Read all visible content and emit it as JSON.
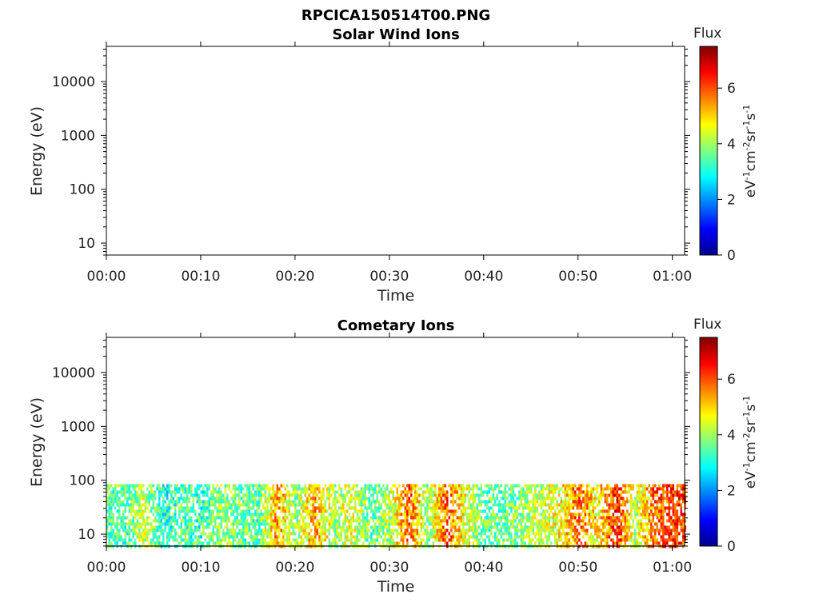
{
  "figure": {
    "title": "RPCICA150514T00.PNG"
  },
  "colors": {
    "axis": "#000000",
    "text": "#222222"
  },
  "chart_data": [
    {
      "type": "heatmap",
      "title": "Solar Wind Ions",
      "xlabel": "Time",
      "ylabel": "Energy (eV)",
      "x_ticks": [
        "00:00",
        "00:10",
        "00:20",
        "00:30",
        "00:40",
        "00:50",
        "01:00"
      ],
      "x_range_minutes": [
        0,
        61.3
      ],
      "y_ticks": [
        "10",
        "100",
        "1000",
        "10000"
      ],
      "y_scale": "log",
      "y_range": [
        6,
        45000
      ],
      "colorbar": {
        "label": "Flux",
        "units": "eV-1cm-2sr-1s-1",
        "ticks": [
          "0",
          "2",
          "4",
          "6"
        ],
        "range": [
          0,
          7.5
        ],
        "colormap": "jet"
      },
      "data": "empty"
    },
    {
      "type": "heatmap",
      "title": "Cometary Ions",
      "xlabel": "Time",
      "ylabel": "Energy (eV)",
      "x_ticks": [
        "00:00",
        "00:10",
        "00:20",
        "00:30",
        "00:40",
        "00:50",
        "01:00"
      ],
      "x_range_minutes": [
        0,
        61.3
      ],
      "y_ticks": [
        "10",
        "100",
        "1000",
        "10000"
      ],
      "y_scale": "log",
      "y_range": [
        6,
        45000
      ],
      "colorbar": {
        "label": "Flux",
        "units": "eV-1cm-2sr-1s-1",
        "ticks": [
          "0",
          "2",
          "4",
          "6"
        ],
        "range": [
          0,
          7.5
        ],
        "colormap": "jet"
      },
      "data_energy_range_eV": [
        6,
        85
      ],
      "time_series_minutes": [
        0,
        2,
        4,
        6,
        8,
        10,
        12,
        14,
        16,
        18,
        20,
        22,
        24,
        26,
        28,
        30,
        32,
        34,
        36,
        38,
        40,
        42,
        44,
        46,
        48,
        50,
        52,
        54,
        56,
        58,
        60
      ],
      "typical_flux_by_time": [
        3.5,
        3.4,
        4.3,
        3.0,
        3.5,
        3.2,
        4.0,
        3.6,
        3.4,
        5.5,
        3.8,
        5.4,
        4.0,
        4.5,
        3.4,
        4.2,
        5.9,
        3.8,
        6.0,
        4.5,
        3.6,
        3.5,
        3.9,
        4.2,
        4.6,
        5.8,
        4.7,
        6.3,
        4.2,
        5.8,
        6.2
      ]
    }
  ]
}
